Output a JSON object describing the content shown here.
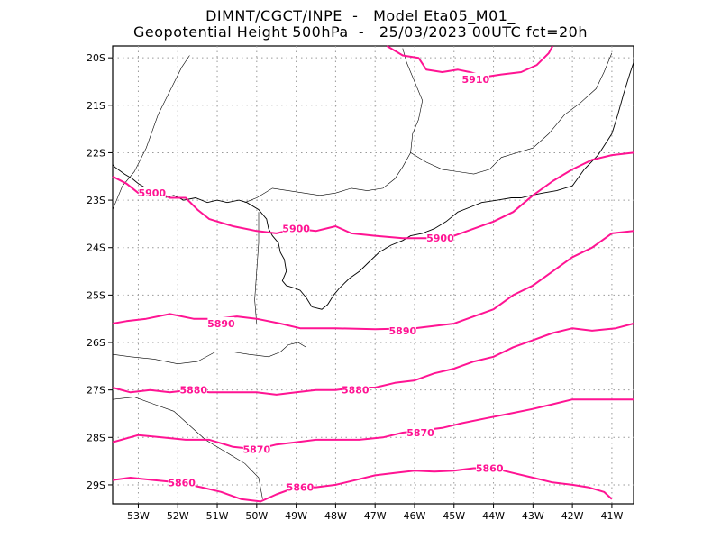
{
  "header": {
    "line1": "DIMNT/CGCT/INPE  -   Model Eta05_M01_",
    "line2": "Geopotential Height 500hPa  -   25/03/2023 00UTC fct=20h"
  },
  "map": {
    "lon_range": [
      -53.65,
      -40.45
    ],
    "lat_range": [
      -29.4,
      -19.75
    ],
    "lon_ticks": [
      {
        "value": -53,
        "label": "53W"
      },
      {
        "value": -52,
        "label": "52W"
      },
      {
        "value": -51,
        "label": "51W"
      },
      {
        "value": -50,
        "label": "50W"
      },
      {
        "value": -49,
        "label": "49W"
      },
      {
        "value": -48,
        "label": "48W"
      },
      {
        "value": -47,
        "label": "47W"
      },
      {
        "value": -46,
        "label": "46W"
      },
      {
        "value": -45,
        "label": "45W"
      },
      {
        "value": -44,
        "label": "44W"
      },
      {
        "value": -43,
        "label": "43W"
      },
      {
        "value": -42,
        "label": "42W"
      },
      {
        "value": -41,
        "label": "41W"
      }
    ],
    "lat_ticks": [
      {
        "value": -20,
        "label": "20S"
      },
      {
        "value": -21,
        "label": "21S"
      },
      {
        "value": -22,
        "label": "22S"
      },
      {
        "value": -23,
        "label": "23S"
      },
      {
        "value": -24,
        "label": "24S"
      },
      {
        "value": -25,
        "label": "25S"
      },
      {
        "value": -26,
        "label": "26S"
      },
      {
        "value": -27,
        "label": "27S"
      },
      {
        "value": -28,
        "label": "28S"
      },
      {
        "value": -29,
        "label": "29S"
      }
    ],
    "contour_color": "#ff1493",
    "contours": [
      {
        "value": 5910,
        "label": "5910",
        "points": [
          [
            -46.7,
            -19.75
          ],
          [
            -46.3,
            -19.95
          ],
          [
            -45.9,
            -20.0
          ],
          [
            -45.7,
            -20.25
          ],
          [
            -45.3,
            -20.3
          ],
          [
            -44.9,
            -20.25
          ],
          [
            -44.6,
            -20.3
          ],
          [
            -44.2,
            -20.4
          ],
          [
            -43.8,
            -20.35
          ],
          [
            -43.3,
            -20.3
          ],
          [
            -42.9,
            -20.15
          ],
          [
            -42.6,
            -19.9
          ],
          [
            -42.5,
            -19.75
          ]
        ],
        "labels": [
          [
            -44.45,
            -20.45
          ]
        ]
      },
      {
        "value": 5900,
        "label": "5900",
        "points": [
          [
            -53.65,
            -22.5
          ],
          [
            -53.3,
            -22.65
          ],
          [
            -53.0,
            -22.85
          ],
          [
            -52.6,
            -22.8
          ],
          [
            -52.2,
            -22.95
          ],
          [
            -51.8,
            -22.95
          ],
          [
            -51.5,
            -23.2
          ],
          [
            -51.2,
            -23.4
          ],
          [
            -50.6,
            -23.55
          ],
          [
            -50.0,
            -23.65
          ],
          [
            -49.5,
            -23.7
          ],
          [
            -49.0,
            -23.6
          ],
          [
            -48.5,
            -23.65
          ],
          [
            -48.0,
            -23.55
          ],
          [
            -47.6,
            -23.7
          ],
          [
            -47.0,
            -23.75
          ],
          [
            -46.3,
            -23.8
          ],
          [
            -45.6,
            -23.8
          ],
          [
            -45.0,
            -23.75
          ],
          [
            -44.5,
            -23.6
          ],
          [
            -44.0,
            -23.45
          ],
          [
            -43.5,
            -23.25
          ],
          [
            -43.0,
            -22.9
          ],
          [
            -42.5,
            -22.6
          ],
          [
            -42.0,
            -22.35
          ],
          [
            -41.5,
            -22.15
          ],
          [
            -41.0,
            -22.05
          ],
          [
            -40.45,
            -22.0
          ]
        ],
        "labels": [
          [
            -52.65,
            -22.85
          ],
          [
            -49.0,
            -23.6
          ],
          [
            -45.35,
            -23.8
          ]
        ]
      },
      {
        "value": 5890,
        "label": "5890",
        "points": [
          [
            -53.65,
            -25.6
          ],
          [
            -53.3,
            -25.55
          ],
          [
            -52.8,
            -25.5
          ],
          [
            -52.2,
            -25.4
          ],
          [
            -51.6,
            -25.5
          ],
          [
            -51.0,
            -25.5
          ],
          [
            -50.5,
            -25.45
          ],
          [
            -50.0,
            -25.5
          ],
          [
            -49.4,
            -25.6
          ],
          [
            -48.9,
            -25.7
          ],
          [
            -48.0,
            -25.7
          ],
          [
            -47.0,
            -25.72
          ],
          [
            -46.0,
            -25.7
          ],
          [
            -45.0,
            -25.6
          ],
          [
            -44.5,
            -25.45
          ],
          [
            -44.0,
            -25.3
          ],
          [
            -43.5,
            -25.0
          ],
          [
            -43.0,
            -24.8
          ],
          [
            -42.5,
            -24.5
          ],
          [
            -42.0,
            -24.2
          ],
          [
            -41.5,
            -24.0
          ],
          [
            -41.0,
            -23.7
          ],
          [
            -40.45,
            -23.65
          ]
        ],
        "labels": [
          [
            -50.9,
            -25.6
          ],
          [
            -46.3,
            -25.75
          ]
        ]
      },
      {
        "value": 5880,
        "label": "5880",
        "points": [
          [
            -53.65,
            -26.95
          ],
          [
            -53.2,
            -27.05
          ],
          [
            -52.7,
            -27.0
          ],
          [
            -52.2,
            -27.05
          ],
          [
            -51.7,
            -27.0
          ],
          [
            -51.2,
            -27.05
          ],
          [
            -50.6,
            -27.05
          ],
          [
            -50.0,
            -27.05
          ],
          [
            -49.5,
            -27.1
          ],
          [
            -49.0,
            -27.05
          ],
          [
            -48.5,
            -27.0
          ],
          [
            -48.0,
            -27.0
          ],
          [
            -47.5,
            -26.95
          ],
          [
            -47.0,
            -26.95
          ],
          [
            -46.5,
            -26.85
          ],
          [
            -46.0,
            -26.8
          ],
          [
            -45.5,
            -26.65
          ],
          [
            -45.0,
            -26.55
          ],
          [
            -44.5,
            -26.4
          ],
          [
            -44.0,
            -26.3
          ],
          [
            -43.5,
            -26.1
          ],
          [
            -43.0,
            -25.95
          ],
          [
            -42.5,
            -25.8
          ],
          [
            -42.0,
            -25.7
          ],
          [
            -41.5,
            -25.75
          ],
          [
            -40.9,
            -25.7
          ],
          [
            -40.45,
            -25.6
          ]
        ],
        "labels": [
          [
            -51.6,
            -27.0
          ],
          [
            -47.5,
            -27.0
          ]
        ]
      },
      {
        "value": 5870,
        "label": "5870",
        "points": [
          [
            -53.65,
            -28.1
          ],
          [
            -53.0,
            -27.95
          ],
          [
            -52.4,
            -28.0
          ],
          [
            -51.8,
            -28.05
          ],
          [
            -51.2,
            -28.05
          ],
          [
            -50.6,
            -28.2
          ],
          [
            -50.0,
            -28.25
          ],
          [
            -49.5,
            -28.15
          ],
          [
            -49.0,
            -28.1
          ],
          [
            -48.5,
            -28.05
          ],
          [
            -48.0,
            -28.05
          ],
          [
            -47.4,
            -28.05
          ],
          [
            -46.8,
            -28.0
          ],
          [
            -46.3,
            -27.9
          ],
          [
            -45.8,
            -27.85
          ],
          [
            -45.3,
            -27.8
          ],
          [
            -44.8,
            -27.7
          ],
          [
            -44.2,
            -27.6
          ],
          [
            -43.6,
            -27.5
          ],
          [
            -43.0,
            -27.4
          ],
          [
            -42.5,
            -27.3
          ],
          [
            -42.0,
            -27.2
          ],
          [
            -41.5,
            -27.2
          ],
          [
            -40.9,
            -27.2
          ],
          [
            -40.45,
            -27.2
          ]
        ],
        "labels": [
          [
            -50.0,
            -28.25
          ],
          [
            -45.85,
            -27.9
          ]
        ]
      },
      {
        "value": 5860,
        "label": "5860",
        "points": [
          [
            -53.65,
            -28.9
          ],
          [
            -53.2,
            -28.85
          ],
          [
            -52.6,
            -28.9
          ],
          [
            -52.0,
            -28.95
          ],
          [
            -51.4,
            -29.05
          ],
          [
            -50.9,
            -29.15
          ],
          [
            -50.4,
            -29.3
          ],
          [
            -49.9,
            -29.35
          ],
          [
            -49.5,
            -29.2
          ],
          [
            -49.0,
            -29.05
          ],
          [
            -48.5,
            -29.05
          ],
          [
            -48.0,
            -29.0
          ],
          [
            -47.5,
            -28.9
          ],
          [
            -47.0,
            -28.8
          ],
          [
            -46.5,
            -28.75
          ],
          [
            -46.0,
            -28.7
          ],
          [
            -45.5,
            -28.72
          ],
          [
            -45.0,
            -28.7
          ],
          [
            -44.5,
            -28.65
          ],
          [
            -44.0,
            -28.65
          ],
          [
            -43.5,
            -28.75
          ],
          [
            -43.0,
            -28.85
          ],
          [
            -42.5,
            -28.95
          ],
          [
            -42.0,
            -29.0
          ],
          [
            -41.6,
            -29.05
          ],
          [
            -41.2,
            -29.15
          ],
          [
            -41.0,
            -29.3
          ]
        ],
        "labels": [
          [
            -51.9,
            -28.95
          ],
          [
            -48.9,
            -29.05
          ],
          [
            -44.1,
            -28.65
          ]
        ]
      }
    ],
    "coastline": [
      [
        -53.65,
        -22.25
      ],
      [
        -53.6,
        -22.3
      ],
      [
        -53.35,
        -22.45
      ],
      [
        -53.15,
        -22.55
      ],
      [
        -53.0,
        -22.65
      ],
      [
        -52.8,
        -22.75
      ],
      [
        -52.6,
        -22.9
      ],
      [
        -52.35,
        -22.95
      ],
      [
        -52.1,
        -22.9
      ],
      [
        -51.85,
        -23.0
      ],
      [
        -51.55,
        -22.95
      ],
      [
        -51.25,
        -23.05
      ],
      [
        -51.0,
        -23.0
      ],
      [
        -50.75,
        -23.05
      ],
      [
        -50.45,
        -23.0
      ],
      [
        -50.25,
        -23.05
      ],
      [
        -49.95,
        -23.2
      ],
      [
        -49.75,
        -23.4
      ],
      [
        -49.7,
        -23.6
      ],
      [
        -49.6,
        -23.75
      ],
      [
        -49.45,
        -23.9
      ],
      [
        -49.4,
        -24.1
      ],
      [
        -49.3,
        -24.25
      ],
      [
        -49.25,
        -24.5
      ],
      [
        -49.35,
        -24.7
      ],
      [
        -49.25,
        -24.8
      ],
      [
        -49.05,
        -24.85
      ],
      [
        -48.9,
        -24.9
      ],
      [
        -48.75,
        -25.05
      ],
      [
        -48.6,
        -25.25
      ],
      [
        -48.35,
        -25.3
      ],
      [
        -48.2,
        -25.2
      ],
      [
        -48.05,
        -25.0
      ],
      [
        -47.9,
        -24.85
      ],
      [
        -47.65,
        -24.65
      ],
      [
        -47.4,
        -24.5
      ],
      [
        -47.15,
        -24.3
      ],
      [
        -46.9,
        -24.1
      ],
      [
        -46.6,
        -23.95
      ],
      [
        -46.3,
        -23.85
      ],
      [
        -46.1,
        -23.75
      ],
      [
        -45.8,
        -23.7
      ],
      [
        -45.5,
        -23.6
      ],
      [
        -45.2,
        -23.45
      ],
      [
        -44.9,
        -23.25
      ],
      [
        -44.6,
        -23.15
      ],
      [
        -44.3,
        -23.05
      ],
      [
        -43.9,
        -23.0
      ],
      [
        -43.55,
        -22.95
      ],
      [
        -43.3,
        -22.95
      ],
      [
        -43.05,
        -22.9
      ],
      [
        -42.75,
        -22.85
      ],
      [
        -42.4,
        -22.8
      ],
      [
        -42.0,
        -22.7
      ],
      [
        -41.7,
        -22.35
      ],
      [
        -41.35,
        -22.05
      ],
      [
        -41.0,
        -21.6
      ],
      [
        -40.85,
        -21.2
      ],
      [
        -40.7,
        -20.75
      ],
      [
        -40.55,
        -20.35
      ],
      [
        -40.45,
        -20.1
      ]
    ],
    "borders": [
      [
        [
          -53.65,
          -23.2
        ],
        [
          -53.4,
          -22.7
        ],
        [
          -53.1,
          -22.4
        ],
        [
          -52.8,
          -21.9
        ],
        [
          -52.5,
          -21.2
        ],
        [
          -52.2,
          -20.7
        ],
        [
          -51.9,
          -20.2
        ],
        [
          -51.7,
          -19.95
        ]
      ],
      [
        [
          -50.3,
          -23.05
        ],
        [
          -50.0,
          -22.95
        ],
        [
          -49.6,
          -22.75
        ],
        [
          -49.2,
          -22.8
        ],
        [
          -48.8,
          -22.85
        ],
        [
          -48.4,
          -22.9
        ],
        [
          -48.0,
          -22.85
        ],
        [
          -47.6,
          -22.75
        ],
        [
          -47.2,
          -22.8
        ],
        [
          -46.8,
          -22.75
        ],
        [
          -46.5,
          -22.55
        ],
        [
          -46.3,
          -22.3
        ],
        [
          -46.1,
          -22.0
        ],
        [
          -46.05,
          -21.6
        ],
        [
          -45.9,
          -21.3
        ],
        [
          -45.8,
          -20.9
        ],
        [
          -46.0,
          -20.5
        ],
        [
          -46.2,
          -20.1
        ],
        [
          -46.3,
          -19.8
        ]
      ],
      [
        [
          -46.1,
          -22.0
        ],
        [
          -45.7,
          -22.2
        ],
        [
          -45.3,
          -22.35
        ],
        [
          -44.9,
          -22.4
        ],
        [
          -44.5,
          -22.45
        ],
        [
          -44.1,
          -22.35
        ],
        [
          -43.8,
          -22.1
        ],
        [
          -43.4,
          -22.0
        ],
        [
          -43.0,
          -21.9
        ],
        [
          -42.6,
          -21.6
        ],
        [
          -42.2,
          -21.2
        ],
        [
          -41.8,
          -20.95
        ],
        [
          -41.4,
          -20.65
        ],
        [
          -41.2,
          -20.3
        ],
        [
          -41.0,
          -19.9
        ]
      ],
      [
        [
          -53.65,
          -26.25
        ],
        [
          -53.2,
          -26.3
        ],
        [
          -52.6,
          -26.35
        ],
        [
          -52.0,
          -26.45
        ],
        [
          -51.5,
          -26.4
        ],
        [
          -51.05,
          -26.2
        ],
        [
          -50.6,
          -26.2
        ],
        [
          -50.2,
          -26.25
        ],
        [
          -49.7,
          -26.3
        ],
        [
          -49.4,
          -26.2
        ],
        [
          -49.2,
          -26.05
        ],
        [
          -48.95,
          -26.0
        ],
        [
          -48.75,
          -26.1
        ]
      ],
      [
        [
          -53.65,
          -27.2
        ],
        [
          -53.1,
          -27.15
        ],
        [
          -52.6,
          -27.3
        ],
        [
          -52.1,
          -27.45
        ],
        [
          -51.7,
          -27.75
        ],
        [
          -51.3,
          -28.05
        ],
        [
          -50.8,
          -28.3
        ],
        [
          -50.3,
          -28.55
        ],
        [
          -49.95,
          -28.85
        ],
        [
          -49.85,
          -29.3
        ]
      ],
      [
        [
          -49.95,
          -23.25
        ],
        [
          -49.95,
          -23.9
        ],
        [
          -50.0,
          -24.5
        ],
        [
          -50.05,
          -25.1
        ],
        [
          -50.0,
          -25.6
        ]
      ]
    ]
  }
}
